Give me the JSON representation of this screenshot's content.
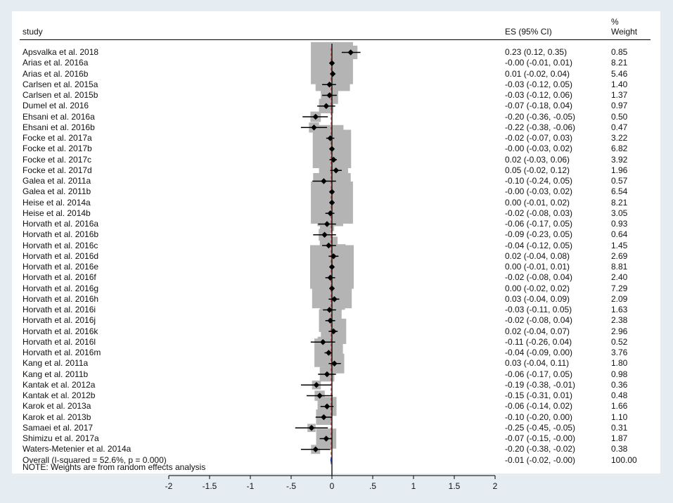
{
  "header": {
    "study": "study",
    "es": "ES (95% CI)",
    "pct": "%",
    "weight": "Weight"
  },
  "note": "NOTE: Weights are from random effects analysis",
  "colors": {
    "background": "#e6edf2",
    "box": "#b4b4b4",
    "marker": "#000000",
    "overall_diamond": "#1b3fa0",
    "null_line": "#000000",
    "overall_line": "#c0392b"
  },
  "chart_data": {
    "type": "forest",
    "x_ticks": [
      -2,
      -1.5,
      -1,
      -0.5,
      0,
      0.5,
      1,
      1.5,
      2
    ],
    "x_tick_labels": [
      "-2",
      "-1.5",
      "-1",
      "-.5",
      "0",
      ".5",
      "1",
      "1.5",
      "2"
    ],
    "xlim": [
      -2,
      2
    ],
    "studies": [
      {
        "study": "Apsvalka et al. 2018",
        "es": 0.23,
        "lo": 0.12,
        "hi": 0.35,
        "weight": 0.85,
        "es_text": "0.23 (0.12, 0.35)",
        "weight_text": "0.85"
      },
      {
        "study": "Arias et al. 2016a",
        "es": -0.0,
        "lo": -0.01,
        "hi": 0.01,
        "weight": 8.21,
        "es_text": "-0.00 (-0.01, 0.01)",
        "weight_text": "8.21"
      },
      {
        "study": "Arias et al. 2016b",
        "es": 0.01,
        "lo": -0.02,
        "hi": 0.04,
        "weight": 5.46,
        "es_text": "0.01 (-0.02, 0.04)",
        "weight_text": "5.46"
      },
      {
        "study": "Carlsen et al. 2015a",
        "es": -0.03,
        "lo": -0.12,
        "hi": 0.05,
        "weight": 1.4,
        "es_text": "-0.03 (-0.12, 0.05)",
        "weight_text": "1.40"
      },
      {
        "study": "Carlsen et al. 2015b",
        "es": -0.03,
        "lo": -0.12,
        "hi": 0.06,
        "weight": 1.37,
        "es_text": "-0.03 (-0.12, 0.06)",
        "weight_text": "1.37"
      },
      {
        "study": "Dumel et al. 2016",
        "es": -0.07,
        "lo": -0.18,
        "hi": 0.04,
        "weight": 0.97,
        "es_text": "-0.07 (-0.18, 0.04)",
        "weight_text": "0.97"
      },
      {
        "study": "Ehsani et al. 2016a",
        "es": -0.2,
        "lo": -0.36,
        "hi": -0.05,
        "weight": 0.5,
        "es_text": "-0.20 (-0.36, -0.05)",
        "weight_text": "0.50"
      },
      {
        "study": "Ehsani et al. 2016b",
        "es": -0.22,
        "lo": -0.38,
        "hi": -0.06,
        "weight": 0.47,
        "es_text": "-0.22 (-0.38, -0.06)",
        "weight_text": "0.47"
      },
      {
        "study": "Focke et al. 2017a",
        "es": -0.02,
        "lo": -0.07,
        "hi": 0.03,
        "weight": 3.22,
        "es_text": "-0.02 (-0.07, 0.03)",
        "weight_text": "3.22"
      },
      {
        "study": "Focke et al. 2017b",
        "es": -0.0,
        "lo": -0.03,
        "hi": 0.02,
        "weight": 6.82,
        "es_text": "-0.00 (-0.03, 0.02)",
        "weight_text": "6.82"
      },
      {
        "study": "Focke et al. 2017c",
        "es": 0.02,
        "lo": -0.03,
        "hi": 0.06,
        "weight": 3.92,
        "es_text": "0.02 (-0.03, 0.06)",
        "weight_text": "3.92"
      },
      {
        "study": "Focke et al. 2017d",
        "es": 0.05,
        "lo": -0.02,
        "hi": 0.12,
        "weight": 1.96,
        "es_text": "0.05 (-0.02, 0.12)",
        "weight_text": "1.96"
      },
      {
        "study": "Galea et al. 2011a",
        "es": -0.1,
        "lo": -0.24,
        "hi": 0.05,
        "weight": 0.57,
        "es_text": "-0.10 (-0.24, 0.05)",
        "weight_text": "0.57"
      },
      {
        "study": "Galea et al. 2011b",
        "es": -0.0,
        "lo": -0.03,
        "hi": 0.02,
        "weight": 6.54,
        "es_text": "-0.00 (-0.03, 0.02)",
        "weight_text": "6.54"
      },
      {
        "study": "Heise et al. 2014a",
        "es": 0.0,
        "lo": -0.01,
        "hi": 0.02,
        "weight": 8.21,
        "es_text": "0.00 (-0.01, 0.02)",
        "weight_text": "8.21"
      },
      {
        "study": "Heise et al. 2014b",
        "es": -0.02,
        "lo": -0.08,
        "hi": 0.03,
        "weight": 3.05,
        "es_text": "-0.02 (-0.08, 0.03)",
        "weight_text": "3.05"
      },
      {
        "study": "Horvath et al. 2016a",
        "es": -0.06,
        "lo": -0.17,
        "hi": 0.05,
        "weight": 0.93,
        "es_text": "-0.06 (-0.17, 0.05)",
        "weight_text": "0.93"
      },
      {
        "study": "Horvath et al. 2016b",
        "es": -0.09,
        "lo": -0.23,
        "hi": 0.05,
        "weight": 0.64,
        "es_text": "-0.09 (-0.23, 0.05)",
        "weight_text": "0.64"
      },
      {
        "study": "Horvath et al. 2016c",
        "es": -0.04,
        "lo": -0.12,
        "hi": 0.05,
        "weight": 1.45,
        "es_text": "-0.04 (-0.12, 0.05)",
        "weight_text": "1.45"
      },
      {
        "study": "Horvath et al. 2016d",
        "es": 0.02,
        "lo": -0.04,
        "hi": 0.08,
        "weight": 2.69,
        "es_text": "0.02 (-0.04, 0.08)",
        "weight_text": "2.69"
      },
      {
        "study": "Horvath et al. 2016e",
        "es": 0.0,
        "lo": -0.01,
        "hi": 0.01,
        "weight": 8.81,
        "es_text": "0.00 (-0.01, 0.01)",
        "weight_text": "8.81"
      },
      {
        "study": "Horvath et al. 2016f",
        "es": -0.02,
        "lo": -0.08,
        "hi": 0.04,
        "weight": 2.4,
        "es_text": "-0.02 (-0.08, 0.04)",
        "weight_text": "2.40"
      },
      {
        "study": "Horvath et al. 2016g",
        "es": 0.0,
        "lo": -0.02,
        "hi": 0.02,
        "weight": 7.29,
        "es_text": "0.00 (-0.02, 0.02)",
        "weight_text": "7.29"
      },
      {
        "study": "Horvath et al. 2016h",
        "es": 0.03,
        "lo": -0.04,
        "hi": 0.09,
        "weight": 2.09,
        "es_text": "0.03 (-0.04, 0.09)",
        "weight_text": "2.09"
      },
      {
        "study": "Horvath et al. 2016i",
        "es": -0.03,
        "lo": -0.11,
        "hi": 0.05,
        "weight": 1.63,
        "es_text": "-0.03 (-0.11, 0.05)",
        "weight_text": "1.63"
      },
      {
        "study": "Horvath et al. 2016j",
        "es": -0.02,
        "lo": -0.08,
        "hi": 0.04,
        "weight": 2.38,
        "es_text": "-0.02 (-0.08, 0.04)",
        "weight_text": "2.38"
      },
      {
        "study": "Horvath et al. 2016k",
        "es": 0.02,
        "lo": -0.04,
        "hi": 0.07,
        "weight": 2.96,
        "es_text": "0.02 (-0.04, 0.07)",
        "weight_text": "2.96"
      },
      {
        "study": "Horvath et al. 2016l",
        "es": -0.11,
        "lo": -0.26,
        "hi": 0.04,
        "weight": 0.52,
        "es_text": "-0.11 (-0.26, 0.04)",
        "weight_text": "0.52"
      },
      {
        "study": "Horvath et al. 2016m",
        "es": -0.04,
        "lo": -0.09,
        "hi": 0.0,
        "weight": 3.76,
        "es_text": "-0.04 (-0.09, 0.00)",
        "weight_text": "3.76"
      },
      {
        "study": "Kang et al. 2011a",
        "es": 0.03,
        "lo": -0.04,
        "hi": 0.11,
        "weight": 1.8,
        "es_text": "0.03 (-0.04, 0.11)",
        "weight_text": "1.80"
      },
      {
        "study": "Kang et al. 2011b",
        "es": -0.06,
        "lo": -0.17,
        "hi": 0.05,
        "weight": 0.98,
        "es_text": "-0.06 (-0.17, 0.05)",
        "weight_text": "0.98"
      },
      {
        "study": "Kantak et al. 2012a",
        "es": -0.19,
        "lo": -0.38,
        "hi": -0.01,
        "weight": 0.36,
        "es_text": "-0.19 (-0.38, -0.01)",
        "weight_text": "0.36"
      },
      {
        "study": "Kantak et al. 2012b",
        "es": -0.15,
        "lo": -0.31,
        "hi": 0.01,
        "weight": 0.48,
        "es_text": "-0.15 (-0.31, 0.01)",
        "weight_text": "0.48"
      },
      {
        "study": "Karok et al. 2013a",
        "es": -0.06,
        "lo": -0.14,
        "hi": 0.02,
        "weight": 1.66,
        "es_text": "-0.06 (-0.14, 0.02)",
        "weight_text": "1.66"
      },
      {
        "study": "Karok et al. 2013b",
        "es": -0.1,
        "lo": -0.2,
        "hi": 0.0,
        "weight": 1.1,
        "es_text": "-0.10 (-0.20, 0.00)",
        "weight_text": "1.10"
      },
      {
        "study": "Samaei et al. 2017",
        "es": -0.25,
        "lo": -0.45,
        "hi": -0.05,
        "weight": 0.31,
        "es_text": "-0.25 (-0.45, -0.05)",
        "weight_text": "0.31"
      },
      {
        "study": "Shimizu et al. 2017a",
        "es": -0.07,
        "lo": -0.15,
        "hi": -0.0,
        "weight": 1.87,
        "es_text": "-0.07 (-0.15, -0.00)",
        "weight_text": "1.87"
      },
      {
        "study": "Waters-Metenier et al. 2014a",
        "es": -0.2,
        "lo": -0.38,
        "hi": -0.02,
        "weight": 0.38,
        "es_text": "-0.20 (-0.38, -0.02)",
        "weight_text": "0.38"
      }
    ],
    "overall": {
      "label": "Overall  (I-squared = 52.6%, p = 0.000)",
      "es": -0.01,
      "lo": -0.02,
      "hi": -0.0,
      "es_text": "-0.01 (-0.02, -0.00)",
      "weight_text": "100.00"
    }
  }
}
